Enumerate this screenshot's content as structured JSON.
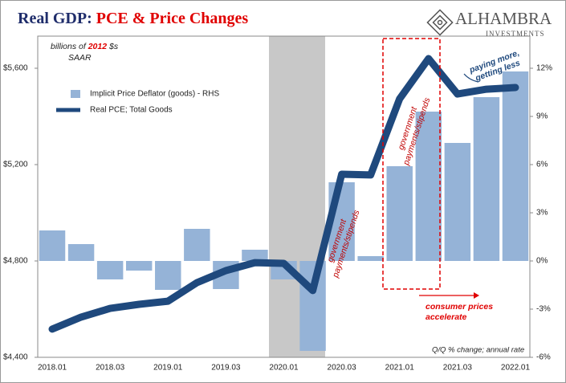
{
  "chart_data": {
    "type": "bar_line",
    "title": [
      "Real GDP:",
      "PCE & Price Changes"
    ],
    "logo": [
      "ALHAMBRA",
      "INVESTMENTS"
    ],
    "units_note": [
      "billions of",
      "2012",
      "$s"
    ],
    "units_note_2": "SAAR",
    "categories": [
      "2018.01",
      null,
      "2018.03",
      null,
      "2019.01",
      null,
      "2019.03",
      null,
      "2020.01",
      null,
      "2020.03",
      null,
      "2021.01",
      null,
      "2021.03",
      null,
      "2022.01"
    ],
    "series": [
      {
        "name": "Implicit Price Deflator (goods) - RHS",
        "type": "bar",
        "axis": "y2",
        "color": "#95b3d7",
        "values": [
          1.9,
          1.05,
          -1.15,
          -0.6,
          -1.8,
          2.0,
          -1.75,
          0.7,
          -1.15,
          -5.6,
          4.9,
          0.3,
          5.9,
          9.3,
          7.35,
          10.2,
          11.8
        ]
      },
      {
        "name": "Real PCE; Total Goods",
        "type": "line",
        "color": "#1f497d",
        "values": [
          4517,
          4567,
          4603,
          4620,
          4633,
          4710,
          4760,
          4793,
          4790,
          4677,
          5160,
          5157,
          5473,
          5640,
          5493,
          5513,
          5520
        ]
      }
    ],
    "ylim": [
      4400,
      5733.33
    ],
    "yticks": [
      {
        "value": 4400,
        "label": "$4,400"
      },
      {
        "value": 4800,
        "label": "$4,800"
      },
      {
        "value": 5200,
        "label": "$5,200"
      },
      {
        "value": 5600,
        "label": "$5,600"
      }
    ],
    "y2lim": [
      -6,
      14
    ],
    "y2ticks": [
      {
        "value": -6,
        "label": "-6%"
      },
      {
        "value": -3,
        "label": "-3%"
      },
      {
        "value": 0,
        "label": "0%"
      },
      {
        "value": 3,
        "label": "3%"
      },
      {
        "value": 6,
        "label": "6%"
      },
      {
        "value": 9,
        "label": "9%"
      },
      {
        "value": 12,
        "label": "12%"
      }
    ],
    "annotations": {
      "stimulus_1": [
        "government",
        "payments/stipends"
      ],
      "stimulus_2": [
        "government",
        "payments/stipends"
      ],
      "paying": [
        "paying more,",
        "getting less"
      ],
      "prices": [
        "consumer prices",
        "accelerate"
      ],
      "axis_note": "Q/Q % change; annual rate"
    }
  }
}
